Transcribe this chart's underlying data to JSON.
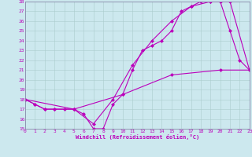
{
  "bg_color": "#cce8ee",
  "line_color": "#bb00bb",
  "grid_color": "#aacccc",
  "spine_color": "#8888aa",
  "xlim": [
    0,
    23
  ],
  "ylim": [
    15,
    28
  ],
  "xticks": [
    0,
    1,
    2,
    3,
    4,
    5,
    6,
    7,
    8,
    9,
    10,
    11,
    12,
    13,
    14,
    15,
    16,
    17,
    18,
    19,
    20,
    21,
    22,
    23
  ],
  "yticks": [
    15,
    16,
    17,
    18,
    19,
    20,
    21,
    22,
    23,
    24,
    25,
    26,
    27,
    28
  ],
  "line1_x": [
    0,
    1,
    2,
    3,
    4,
    5,
    6,
    7,
    8,
    9,
    10,
    11,
    12,
    13,
    14,
    15,
    16,
    17,
    18,
    19,
    20,
    21,
    22,
    23
  ],
  "line1_y": [
    18.0,
    17.5,
    17.0,
    17.0,
    17.0,
    17.0,
    16.5,
    15.0,
    15.0,
    17.5,
    18.5,
    21.0,
    23.0,
    23.5,
    24.0,
    25.0,
    27.0,
    27.5,
    28.0,
    28.0,
    28.0,
    25.0,
    22.0,
    21.0
  ],
  "line2_x": [
    0,
    1,
    2,
    3,
    5,
    7,
    9,
    11,
    13,
    15,
    17,
    19,
    20,
    21,
    23
  ],
  "line2_y": [
    18.0,
    17.5,
    17.0,
    17.0,
    17.0,
    15.5,
    18.0,
    21.5,
    24.0,
    26.0,
    27.5,
    28.0,
    28.0,
    28.0,
    21.0
  ],
  "line3_x": [
    0,
    5,
    10,
    15,
    20,
    23
  ],
  "line3_y": [
    18.0,
    17.0,
    18.5,
    20.5,
    21.0,
    21.0
  ],
  "xlabel": "Windchill (Refroidissement éolien,°C)",
  "markersize": 2.5,
  "linewidth": 0.8
}
